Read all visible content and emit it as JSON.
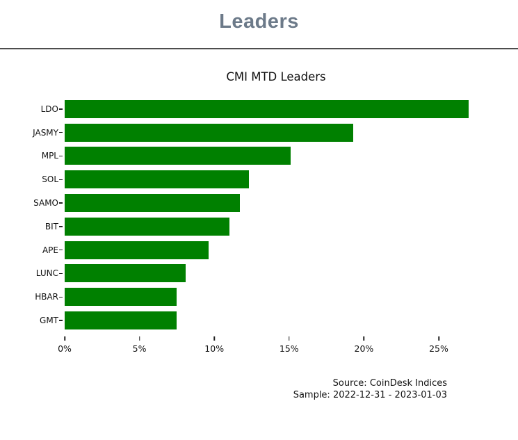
{
  "header": {
    "title": "Leaders"
  },
  "chart": {
    "title": "CMI MTD Leaders",
    "source_line1": "Source: CoinDesk Indices",
    "source_line2": "Sample: 2022-12-31 - 2023-01-03"
  },
  "chart_data": {
    "type": "bar",
    "orientation": "horizontal",
    "title": "CMI MTD Leaders",
    "categories": [
      "LDO",
      "JASMY",
      "MPL",
      "SOL",
      "SAMO",
      "BIT",
      "APE",
      "LUNC",
      "HBAR",
      "GMT"
    ],
    "values": [
      27.0,
      19.3,
      15.1,
      12.3,
      11.7,
      11.0,
      9.6,
      8.1,
      7.5,
      7.5
    ],
    "unit": "%",
    "xlabel": "",
    "ylabel": "",
    "x_tick_labels": [
      "0%",
      "5%",
      "10%",
      "15%",
      "20%",
      "25%"
    ],
    "x_tick_values": [
      0,
      5,
      10,
      15,
      20,
      25
    ],
    "xlim": [
      0,
      28.4
    ],
    "grid": false,
    "legend": "none",
    "bar_color": "#008000",
    "annotations": [
      "Source: CoinDesk Indices",
      "Sample: 2022-12-31 - 2023-01-03"
    ]
  },
  "colors": {
    "header_text": "#6c7a89",
    "divider": "#4d4d4d",
    "bar": "#008000",
    "text": "#111111",
    "background": "#ffffff"
  }
}
